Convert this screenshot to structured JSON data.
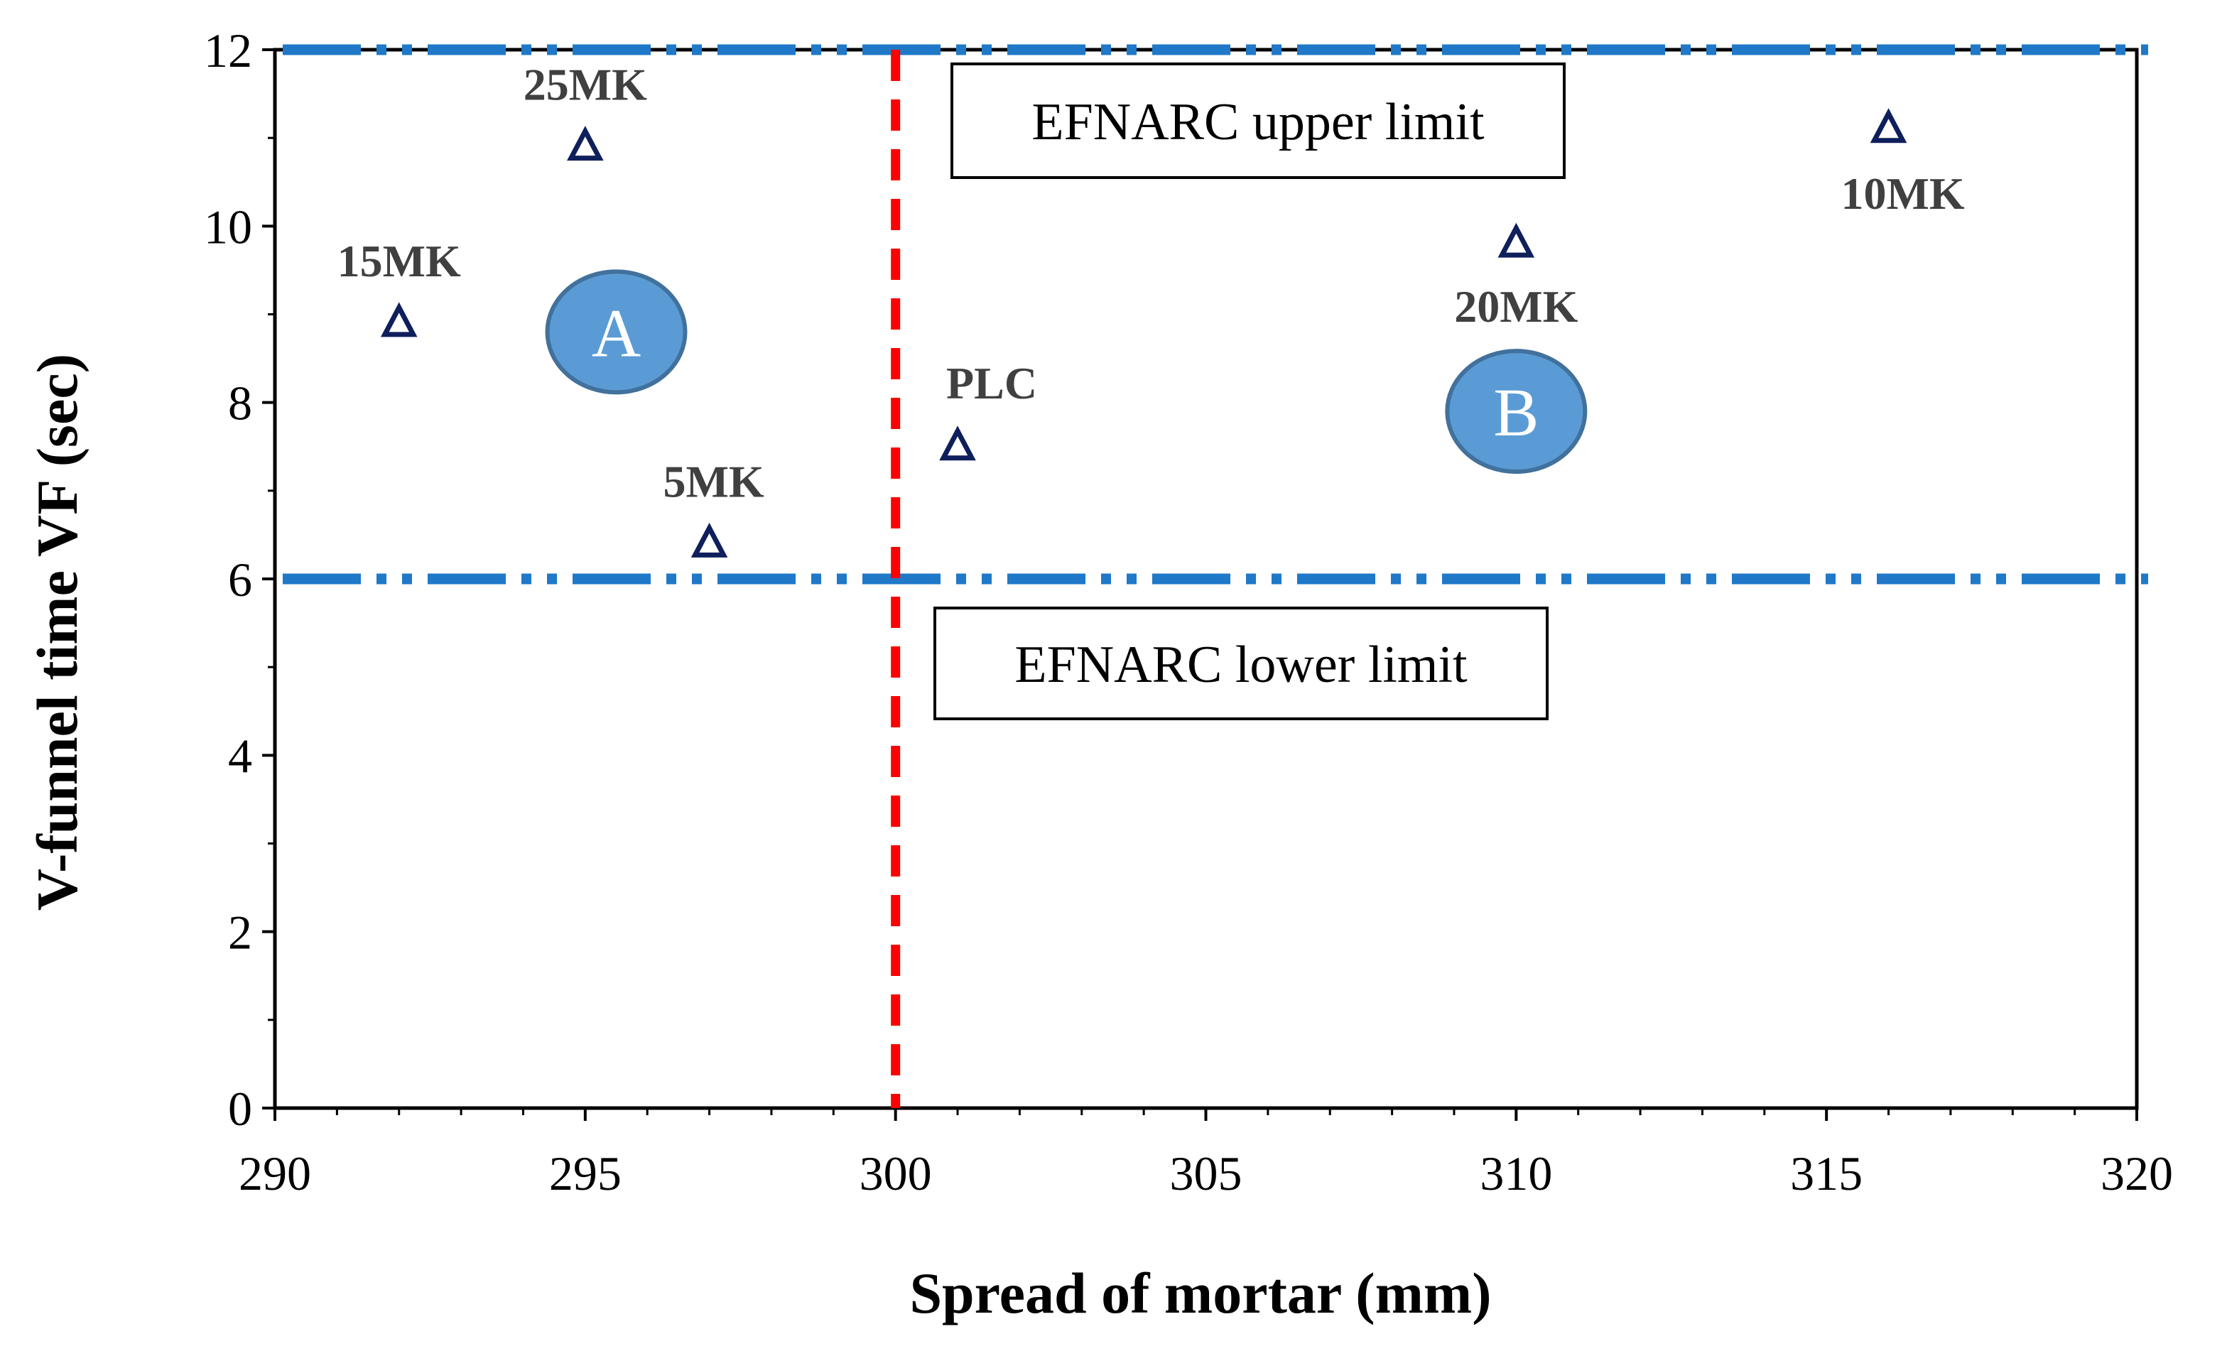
{
  "chart_data": {
    "type": "scatter",
    "xlabel": "Spread of mortar (mm)",
    "ylabel": "V-funnel time VF (sec)",
    "xlim": [
      290,
      320
    ],
    "ylim": [
      0,
      12
    ],
    "xticks": [
      290,
      295,
      300,
      305,
      310,
      315,
      320
    ],
    "yticks": [
      0,
      2,
      4,
      6,
      8,
      10,
      12
    ],
    "grid": false,
    "points": [
      {
        "label": "15MK",
        "x": 292,
        "y": 8.9
      },
      {
        "label": "25MK",
        "x": 295,
        "y": 10.9
      },
      {
        "label": "5MK",
        "x": 297,
        "y": 6.4
      },
      {
        "label": "PLC",
        "x": 301,
        "y": 7.5
      },
      {
        "label": "20MK",
        "x": 310,
        "y": 9.8
      },
      {
        "label": "10MK",
        "x": 316,
        "y": 11.1
      }
    ],
    "reference_lines": [
      {
        "orientation": "horizontal",
        "value": 12,
        "label": "EFNARC upper limit",
        "style": "dash-dot-dot",
        "color": "#1F78C8"
      },
      {
        "orientation": "horizontal",
        "value": 6,
        "label": "EFNARC lower limit",
        "style": "dash-dot-dot",
        "color": "#1F78C8"
      },
      {
        "orientation": "vertical",
        "value": 300,
        "label": "",
        "style": "dashed",
        "color": "#FF0000"
      }
    ],
    "zones": [
      {
        "label": "A",
        "x": 295.5,
        "y": 8.8
      },
      {
        "label": "B",
        "x": 310,
        "y": 7.9
      }
    ],
    "colors": {
      "marker": "#0F1F5C",
      "limit_line": "#1F78C8",
      "threshold_line": "#FF0000",
      "zone_fill": "#5B9BD5",
      "zone_edge": "#41719C"
    }
  }
}
